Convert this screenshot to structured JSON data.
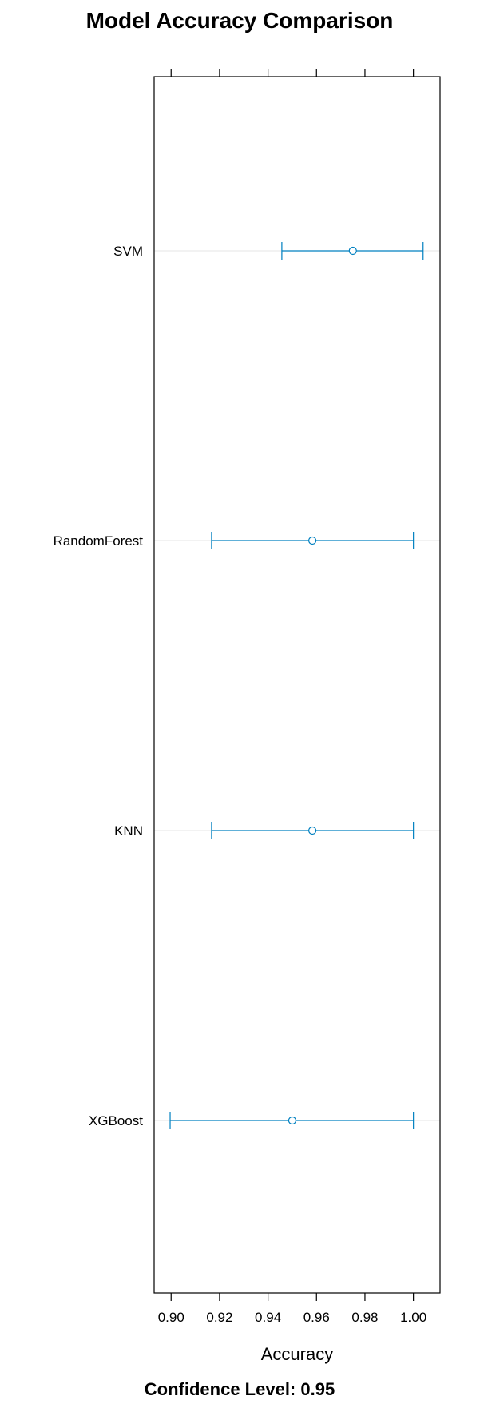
{
  "chart_data": {
    "type": "scatter",
    "title": "Model Accuracy Comparison",
    "xlabel": "Accuracy",
    "ylabel": "",
    "footer": "Confidence Level: 0.95",
    "xlim": [
      0.893,
      1.011
    ],
    "x_ticks": [
      0.9,
      0.92,
      0.94,
      0.96,
      0.98,
      1.0
    ],
    "x_tick_labels": [
      "0.90",
      "0.92",
      "0.94",
      "0.96",
      "0.98",
      "1.00"
    ],
    "grid": "horizontal reference lines at each model",
    "categories": [
      "SVM",
      "RandomForest",
      "KNN",
      "XGBoost"
    ],
    "series": [
      {
        "values": [
          0.975,
          0.9583,
          0.9583,
          0.95
        ],
        "lower": [
          0.9457,
          0.9167,
          0.9167,
          0.8996
        ],
        "upper": [
          1.004,
          1.0,
          1.0,
          1.0
        ]
      }
    ],
    "colors": {
      "interval": "#0080c0",
      "grid": "#e6e6e6",
      "frame": "#000000"
    }
  }
}
